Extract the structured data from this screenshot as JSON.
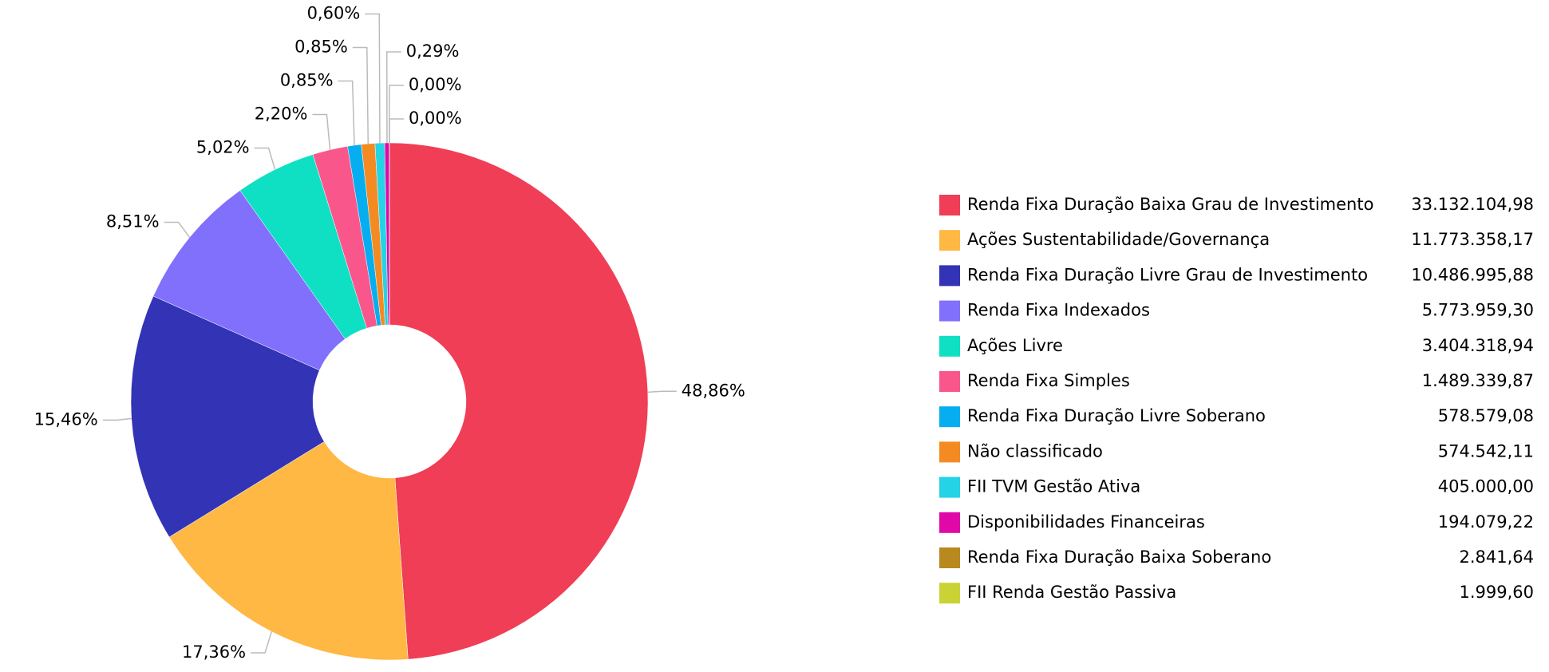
{
  "chart_data": {
    "type": "donut",
    "categories": [
      "Renda Fixa Duração Baixa Grau de Investimento",
      "Ações Sustentabilidade/Governança",
      "Renda Fixa Duração Livre Grau de Investimento",
      "Renda Fixa Indexados",
      "Ações Livre",
      "Renda Fixa Simples",
      "Renda Fixa Duração Livre Soberano",
      "Não classificado",
      "FII TVM Gestão Ativa",
      "Disponibilidades Financeiras",
      "Renda Fixa Duração Baixa Soberano",
      "FII Renda Gestão Passiva"
    ],
    "values": [
      33132104.98,
      11773358.17,
      10486995.88,
      5773959.3,
      3404318.94,
      1489339.87,
      578579.08,
      574542.11,
      405000.0,
      194079.22,
      2841.64,
      1999.6
    ],
    "value_labels": [
      "33.132.104,98",
      "11.773.358,17",
      "10.486.995,88",
      "5.773.959,30",
      "3.404.318,94",
      "1.489.339,87",
      "578.579,08",
      "574.542,11",
      "405.000,00",
      "194.079,22",
      "2.841,64",
      "1.999,60"
    ],
    "percent_labels": [
      "48,86%",
      "17,36%",
      "15,46%",
      "8,51%",
      "5,02%",
      "2,20%",
      "0,85%",
      "0,85%",
      "0,60%",
      "0,29%",
      "0,00%",
      "0,00%"
    ],
    "colors": [
      "#ef3e55",
      "#ffb844",
      "#3333b5",
      "#8070fb",
      "#0fe0c4",
      "#f9578c",
      "#06aef0",
      "#f38b22",
      "#25d3e6",
      "#e009a8",
      "#b8891f",
      "#c9d335"
    ],
    "legend": "right"
  }
}
